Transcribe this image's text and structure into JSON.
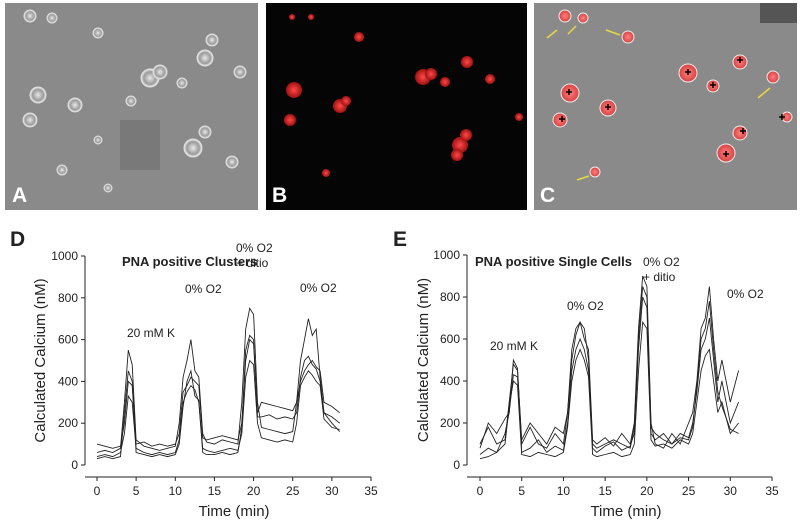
{
  "images": [
    {
      "label": "A"
    },
    {
      "label": "B"
    },
    {
      "label": "C"
    }
  ],
  "chart_data": [
    {
      "type": "line",
      "panel_label": "D",
      "title": "PNA positive Clusters",
      "xlabel": "Time (min)",
      "ylabel": "Calculated Calcium (nM)",
      "annotations": [
        "20 mM K",
        "0% O2",
        "0% O2",
        "+ ditio",
        "0% O2"
      ],
      "xlim": [
        0,
        35
      ],
      "xticks": [
        0,
        5,
        10,
        15,
        20,
        25,
        30,
        35
      ],
      "ylim": [
        0,
        1000
      ],
      "yticks": [
        0,
        200,
        400,
        600,
        800,
        1000
      ],
      "x": [
        0,
        1,
        2,
        3,
        3.5,
        4,
        4.5,
        5,
        6,
        7,
        8,
        9,
        10,
        10.5,
        11,
        11.5,
        12,
        12.5,
        13,
        13.5,
        14,
        15,
        16,
        17,
        18,
        18.5,
        19,
        19.5,
        20,
        20.5,
        21,
        22,
        23,
        24,
        25,
        25.5,
        26,
        26.5,
        27,
        27.5,
        28,
        28.5,
        29,
        30,
        31
      ],
      "series": [
        {
          "color": "#222",
          "values": [
            60,
            70,
            60,
            80,
            300,
            550,
            480,
            120,
            90,
            80,
            70,
            80,
            90,
            200,
            420,
            500,
            600,
            450,
            420,
            150,
            110,
            100,
            120,
            110,
            100,
            300,
            650,
            750,
            720,
            300,
            180,
            170,
            160,
            150,
            160,
            300,
            500,
            600,
            700,
            620,
            650,
            420,
            250,
            200,
            160
          ]
        },
        {
          "color": "#222",
          "values": [
            100,
            90,
            80,
            90,
            200,
            400,
            380,
            100,
            110,
            90,
            100,
            90,
            100,
            150,
            350,
            380,
            420,
            400,
            380,
            130,
            120,
            130,
            140,
            130,
            120,
            200,
            500,
            600,
            580,
            250,
            300,
            290,
            280,
            270,
            260,
            300,
            400,
            450,
            480,
            500,
            470,
            450,
            300,
            280,
            250
          ]
        },
        {
          "color": "#222",
          "values": [
            40,
            50,
            40,
            60,
            150,
            330,
            300,
            80,
            60,
            50,
            60,
            50,
            60,
            120,
            300,
            350,
            380,
            360,
            300,
            80,
            70,
            60,
            70,
            80,
            70,
            150,
            420,
            500,
            480,
            200,
            130,
            120,
            110,
            120,
            110,
            200,
            380,
            420,
            450,
            430,
            400,
            380,
            220,
            180,
            170
          ]
        },
        {
          "color": "#222",
          "values": [
            30,
            40,
            30,
            40,
            250,
            450,
            400,
            60,
            50,
            40,
            50,
            40,
            50,
            100,
            280,
            400,
            450,
            330,
            310,
            60,
            50,
            50,
            60,
            50,
            60,
            180,
            550,
            620,
            600,
            230,
            230,
            240,
            220,
            230,
            220,
            250,
            420,
            500,
            520,
            480,
            460,
            400,
            250,
            230,
            200
          ]
        }
      ]
    },
    {
      "type": "line",
      "panel_label": "E",
      "title": "PNA positive Single Cells",
      "xlabel": "Time (min)",
      "ylabel": "Calculated Calcium (nM)",
      "annotations": [
        "20 mM K",
        "0% O2",
        "0% O2",
        "+ ditio",
        "0% O2"
      ],
      "xlim": [
        0,
        35
      ],
      "xticks": [
        0,
        5,
        10,
        15,
        20,
        25,
        30,
        35
      ],
      "ylim": [
        0,
        1000
      ],
      "yticks": [
        0,
        200,
        400,
        600,
        800,
        1000
      ],
      "x": [
        0,
        1,
        2,
        3,
        3.5,
        4,
        4.5,
        5,
        6,
        7,
        8,
        9,
        10,
        10.5,
        11,
        11.5,
        12,
        12.5,
        13,
        13.5,
        14,
        15,
        16,
        17,
        18,
        18.5,
        19,
        19.5,
        20,
        20.5,
        21,
        22,
        23,
        24,
        25,
        25.5,
        26,
        26.5,
        27,
        27.5,
        28,
        28.5,
        29,
        30,
        31
      ],
      "series": [
        {
          "color": "#222",
          "values": [
            100,
            180,
            100,
            120,
            300,
            480,
            450,
            120,
            200,
            150,
            100,
            180,
            150,
            250,
            550,
            650,
            680,
            600,
            550,
            120,
            100,
            130,
            90,
            150,
            100,
            200,
            650,
            900,
            850,
            200,
            100,
            80,
            150,
            100,
            200,
            250,
            400,
            650,
            700,
            850,
            600,
            400,
            500,
            300,
            450
          ]
        },
        {
          "color": "#222",
          "values": [
            50,
            80,
            60,
            150,
            250,
            430,
            420,
            60,
            80,
            120,
            60,
            90,
            70,
            200,
            450,
            550,
            600,
            550,
            450,
            80,
            60,
            90,
            110,
            70,
            90,
            150,
            550,
            800,
            750,
            150,
            120,
            150,
            100,
            150,
            130,
            200,
            350,
            550,
            600,
            700,
            500,
            300,
            400,
            200,
            300
          ]
        },
        {
          "color": "#222",
          "values": [
            30,
            40,
            60,
            100,
            280,
            400,
            380,
            50,
            40,
            60,
            50,
            40,
            60,
            180,
            400,
            500,
            550,
            500,
            420,
            50,
            40,
            50,
            60,
            40,
            50,
            100,
            450,
            680,
            650,
            120,
            90,
            100,
            80,
            120,
            100,
            150,
            300,
            450,
            520,
            550,
            400,
            250,
            300,
            150,
            200
          ]
        },
        {
          "color": "#222",
          "values": [
            80,
            200,
            150,
            220,
            250,
            500,
            460,
            100,
            180,
            100,
            80,
            150,
            100,
            250,
            500,
            620,
            680,
            650,
            500,
            100,
            80,
            100,
            120,
            100,
            80,
            180,
            600,
            850,
            800,
            180,
            150,
            120,
            100,
            130,
            120,
            180,
            380,
            600,
            650,
            780,
            550,
            350,
            280,
            170,
            150
          ]
        }
      ]
    }
  ]
}
